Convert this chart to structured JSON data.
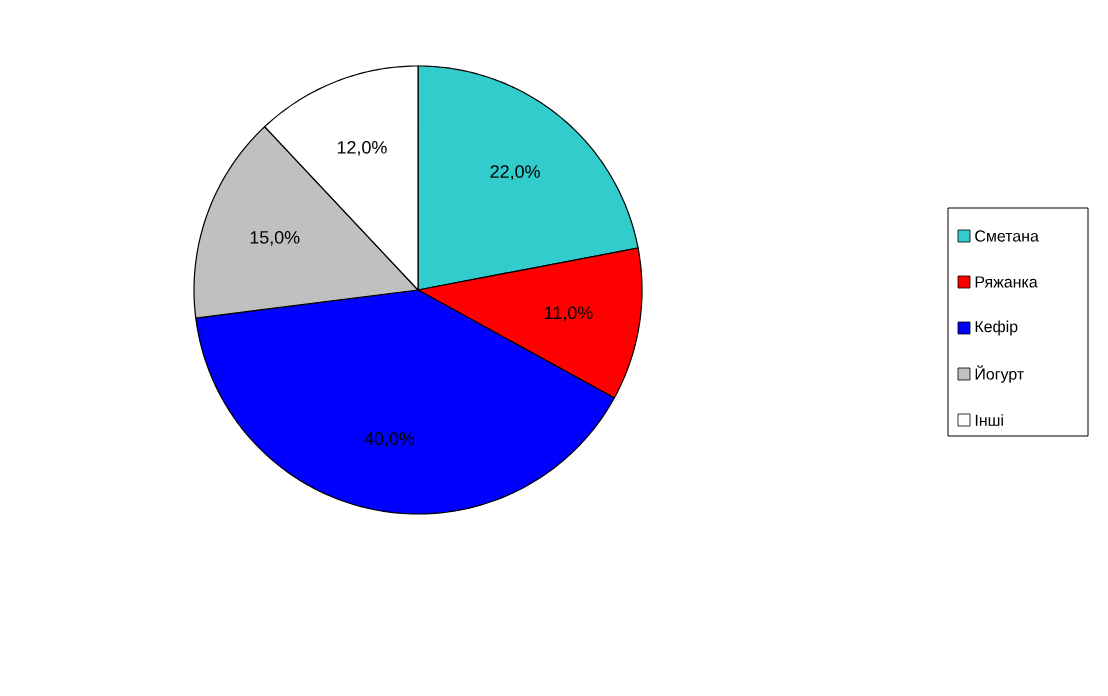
{
  "chart_data": {
    "type": "pie",
    "categories": [
      "Сметана",
      "Ряжанка",
      "Кефір",
      "Йогурт",
      "Інші"
    ],
    "values": [
      22,
      11,
      40,
      15,
      12
    ],
    "colors": [
      "#33cccc",
      "#ff0000",
      "#0000ff",
      "#c0c0c0",
      "#ffffff"
    ],
    "value_labels": [
      "22,0%",
      "11,0%",
      "40,0%",
      "15,0%",
      "12,0%"
    ],
    "legend": "right"
  }
}
